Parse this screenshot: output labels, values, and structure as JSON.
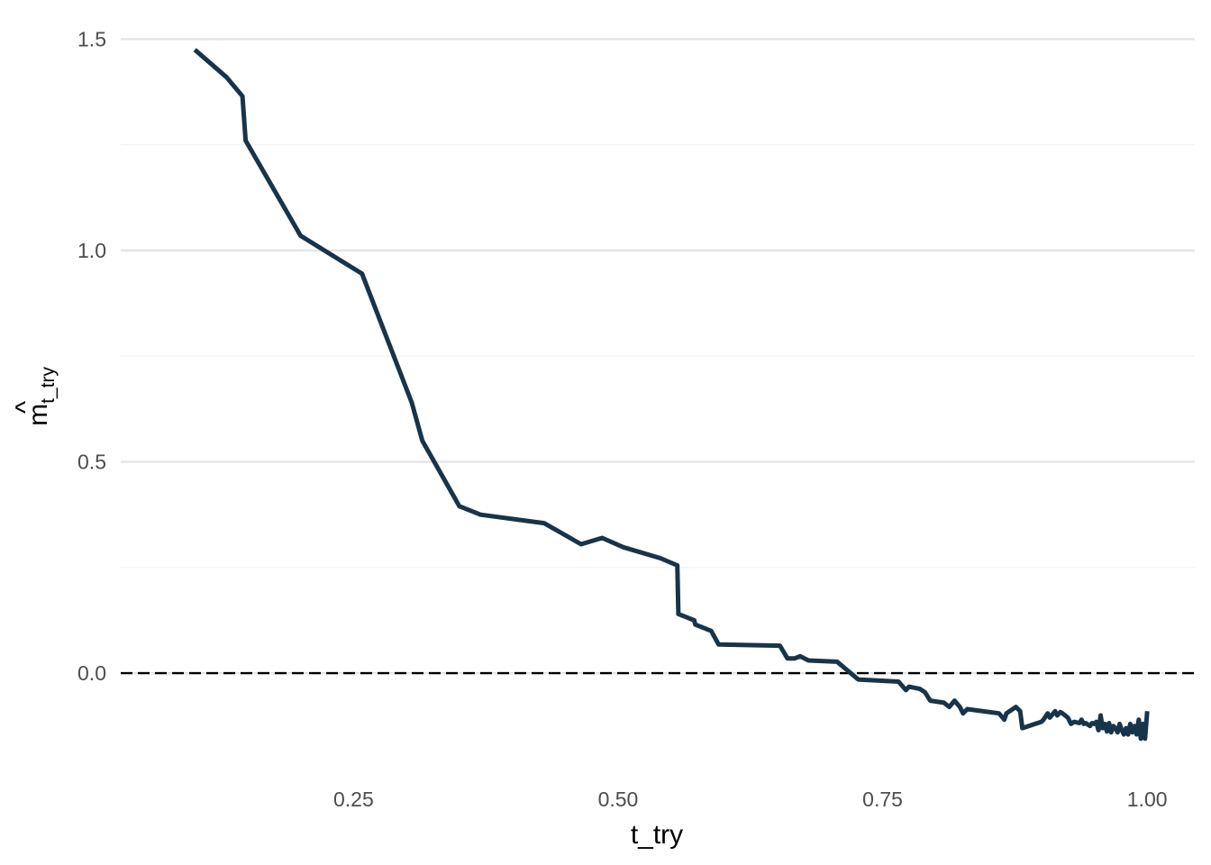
{
  "chart_data": {
    "type": "line",
    "title": "",
    "xlabel": "t_try",
    "ylabel": {
      "main": "m",
      "accent": "^",
      "subscript": "t_try"
    },
    "xlim": [
      0.03,
      1.045
    ],
    "ylim": [
      -0.23,
      1.55
    ],
    "x_ticks": [
      0.25,
      0.5,
      0.75,
      1.0
    ],
    "x_tick_labels": [
      "0.25",
      "0.50",
      "0.75",
      "1.00"
    ],
    "y_ticks": [
      0.0,
      0.5,
      1.0,
      1.5
    ],
    "y_tick_labels": [
      "0.0",
      "0.5",
      "1.0",
      "1.5"
    ],
    "y_minor_ticks": [
      0.25,
      0.75,
      1.25
    ],
    "grid": true,
    "legend": "none",
    "reference_line": {
      "y": 0,
      "style": "dashed",
      "color": "#000000"
    },
    "series": [
      {
        "color": "#17344a",
        "x": [
          0.1,
          0.13,
          0.145,
          0.148,
          0.2,
          0.258,
          0.305,
          0.315,
          0.35,
          0.37,
          0.43,
          0.465,
          0.485,
          0.505,
          0.54,
          0.556,
          0.557,
          0.572,
          0.573,
          0.588,
          0.595,
          0.653,
          0.66,
          0.667,
          0.672,
          0.68,
          0.707,
          0.727,
          0.765,
          0.772,
          0.775,
          0.785,
          0.79,
          0.795,
          0.8,
          0.808,
          0.813,
          0.818,
          0.823,
          0.826,
          0.83,
          0.86,
          0.865,
          0.867,
          0.876,
          0.88,
          0.882,
          0.9,
          0.902,
          0.906,
          0.908,
          0.913,
          0.915,
          0.918,
          0.92,
          0.925,
          0.928,
          0.931,
          0.936,
          0.938,
          0.94,
          0.942,
          0.943,
          0.946,
          0.948,
          0.95,
          0.952,
          0.954,
          0.956,
          0.958,
          0.96,
          0.962,
          0.964,
          0.966,
          0.968,
          0.97,
          0.972,
          0.974,
          0.976,
          0.978,
          0.98,
          0.982,
          0.984,
          0.986,
          0.988,
          0.99,
          0.992,
          0.994,
          0.996,
          0.998,
          1.0
        ],
        "y": [
          1.475,
          1.41,
          1.365,
          1.26,
          1.035,
          0.945,
          0.64,
          0.55,
          0.395,
          0.375,
          0.355,
          0.305,
          0.32,
          0.298,
          0.272,
          0.255,
          0.14,
          0.125,
          0.115,
          0.1,
          0.068,
          0.065,
          0.035,
          0.035,
          0.04,
          0.03,
          0.027,
          -0.015,
          -0.02,
          -0.04,
          -0.032,
          -0.037,
          -0.045,
          -0.065,
          -0.067,
          -0.07,
          -0.08,
          -0.065,
          -0.08,
          -0.095,
          -0.085,
          -0.095,
          -0.11,
          -0.095,
          -0.08,
          -0.09,
          -0.13,
          -0.115,
          -0.11,
          -0.095,
          -0.105,
          -0.09,
          -0.1,
          -0.092,
          -0.095,
          -0.105,
          -0.12,
          -0.115,
          -0.118,
          -0.11,
          -0.12,
          -0.118,
          -0.12,
          -0.125,
          -0.118,
          -0.12,
          -0.115,
          -0.135,
          -0.1,
          -0.13,
          -0.12,
          -0.138,
          -0.118,
          -0.14,
          -0.125,
          -0.13,
          -0.14,
          -0.12,
          -0.135,
          -0.145,
          -0.13,
          -0.145,
          -0.12,
          -0.14,
          -0.125,
          -0.145,
          -0.11,
          -0.155,
          -0.12,
          -0.155,
          -0.09
        ]
      }
    ]
  }
}
